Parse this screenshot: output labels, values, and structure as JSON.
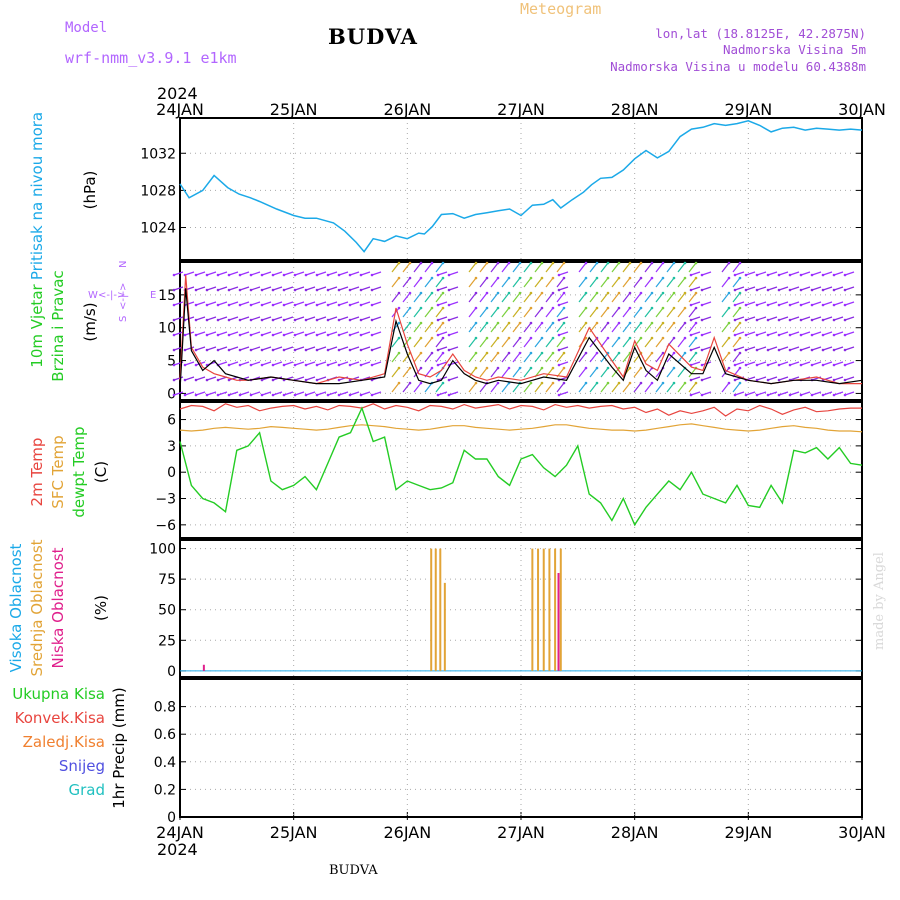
{
  "header": {
    "title": "BUDVA",
    "model_label": "Model",
    "model_value": "wrf-nmm_v3.9.1 e1km",
    "meteogram_label": "Meteogram",
    "lonlat": "lon,lat (18.8125E, 42.2875N)",
    "elevation": "Nadmorska Visina 5m",
    "model_elevation": "Nadmorska Visina u modelu 60.4388m"
  },
  "footer": {
    "station": "BUDVA",
    "credit": "made by Angel"
  },
  "time_axis": {
    "year": "2024",
    "labels": [
      "24JAN",
      "25JAN",
      "26JAN",
      "27JAN",
      "28JAN",
      "29JAN",
      "30JAN"
    ]
  },
  "colors": {
    "pressure": "#1ba9e8",
    "temp_2m": "#e8453f",
    "sfc_temp": "#e2a437",
    "dewpoint": "#24cc24",
    "cloud_high": "#1ba9e8",
    "cloud_mid": "#e2a437",
    "cloud_low": "#e0208c",
    "precip_total": "#24cc24",
    "precip_conv": "#e8453f",
    "precip_freezing": "#f08030",
    "snow": "#5050e0",
    "hail": "#20c0c0",
    "wind_dir_axis": "#b266ff"
  },
  "chart_data": [
    {
      "type": "line",
      "panel": "pressure",
      "ylabel_parts": [
        "Pritisak na nivou mora",
        "(hPa)"
      ],
      "ylim": [
        1020.5,
        1035.8
      ],
      "yticks": [
        1024,
        1028,
        1032
      ],
      "x_days": [
        0,
        0.08,
        0.2,
        0.3,
        0.42,
        0.52,
        0.62,
        0.7,
        0.85,
        1.0,
        1.1,
        1.2,
        1.35,
        1.45,
        1.55,
        1.62,
        1.7,
        1.8,
        1.9,
        2.0,
        2.1,
        2.15,
        2.22,
        2.3,
        2.4,
        2.5,
        2.6,
        2.7,
        2.8,
        2.9,
        3.0,
        3.1,
        3.2,
        3.28,
        3.35,
        3.45,
        3.55,
        3.62,
        3.7,
        3.8,
        3.9,
        4.0,
        4.1,
        4.2,
        4.3,
        4.4,
        4.5,
        4.6,
        4.7,
        4.8,
        4.9,
        5.0,
        5.1,
        5.2,
        5.3,
        5.4,
        5.5,
        5.6,
        5.7,
        5.8,
        5.9,
        6.0
      ],
      "series": [
        {
          "values": [
            1028.7,
            1027.2,
            1028.0,
            1029.6,
            1028.3,
            1027.6,
            1027.2,
            1026.8,
            1026.0,
            1025.3,
            1025.0,
            1025.0,
            1024.5,
            1023.6,
            1022.4,
            1021.4,
            1022.8,
            1022.5,
            1023.1,
            1022.8,
            1023.4,
            1023.3,
            1024.1,
            1025.4,
            1025.5,
            1025.0,
            1025.4,
            1025.6,
            1025.8,
            1026.0,
            1025.3,
            1026.4,
            1026.5,
            1027.0,
            1026.1,
            1027.0,
            1027.8,
            1028.6,
            1029.3,
            1029.4,
            1030.2,
            1031.4,
            1032.3,
            1031.5,
            1032.2,
            1033.8,
            1034.6,
            1034.8,
            1035.2,
            1035.0,
            1035.2,
            1035.5,
            1035.0,
            1034.3,
            1034.7,
            1034.8,
            1034.5,
            1034.7,
            1034.6,
            1034.5,
            1034.6,
            1034.5
          ]
        }
      ]
    },
    {
      "type": "line",
      "panel": "wind",
      "ylabel_parts": [
        "10m Vjetar",
        "Brzina i Pravac",
        "(m/s)"
      ],
      "direction_legend": {
        "n": "N",
        "s": "S",
        "w": "W",
        "e": "E",
        "arrow": "<-|->"
      },
      "ylim": [
        -1,
        20
      ],
      "yticks": [
        0,
        5,
        10,
        15
      ],
      "x_days": [
        0,
        0.05,
        0.1,
        0.2,
        0.3,
        0.4,
        0.5,
        0.6,
        0.8,
        1.0,
        1.2,
        1.4,
        1.6,
        1.8,
        1.9,
        2.0,
        2.1,
        2.2,
        2.3,
        2.4,
        2.5,
        2.6,
        2.7,
        2.8,
        3.0,
        3.2,
        3.4,
        3.6,
        3.8,
        3.9,
        4.0,
        4.1,
        4.2,
        4.3,
        4.5,
        4.6,
        4.7,
        4.8,
        5.0,
        5.2,
        5.4,
        5.6,
        5.8,
        6.0
      ],
      "series": [
        {
          "name": "speed",
          "values": [
            0.5,
            16.0,
            6.5,
            3.5,
            5.0,
            3.0,
            2.5,
            2.0,
            2.5,
            2.0,
            1.5,
            1.5,
            2.0,
            2.5,
            11.0,
            6.0,
            2.0,
            1.5,
            2.0,
            5.0,
            3.0,
            2.0,
            1.5,
            2.0,
            1.5,
            2.5,
            2.0,
            8.5,
            4.0,
            2.0,
            7.0,
            3.5,
            2.0,
            6.0,
            3.0,
            3.0,
            7.0,
            3.0,
            2.0,
            1.5,
            2.0,
            2.0,
            1.5,
            2.0
          ]
        },
        {
          "name": "gust",
          "values": [
            2.0,
            18.0,
            7.0,
            4.0,
            3.0,
            2.5,
            2.0,
            2.0,
            2.5,
            2.0,
            1.5,
            2.5,
            2.0,
            3.0,
            13.0,
            7.5,
            3.0,
            2.5,
            3.5,
            6.0,
            3.5,
            2.5,
            2.0,
            2.5,
            2.0,
            3.0,
            2.5,
            10.0,
            5.0,
            2.5,
            8.0,
            4.5,
            3.5,
            7.5,
            4.0,
            3.5,
            8.5,
            3.5,
            2.0,
            1.5,
            2.0,
            2.5,
            1.5,
            1.5
          ]
        }
      ]
    },
    {
      "type": "line",
      "panel": "temperature",
      "ylabel_parts": [
        "2m Temp",
        "SFC Temp",
        "dewpt Temp",
        "(C)"
      ],
      "ylim": [
        -7.5,
        8.0
      ],
      "yticks": [
        -6,
        -3,
        0,
        3,
        6
      ],
      "x_days": [
        0,
        0.1,
        0.2,
        0.3,
        0.4,
        0.5,
        0.6,
        0.7,
        0.8,
        0.9,
        1.0,
        1.1,
        1.2,
        1.3,
        1.4,
        1.5,
        1.6,
        1.7,
        1.8,
        1.9,
        2.0,
        2.1,
        2.2,
        2.3,
        2.4,
        2.5,
        2.6,
        2.7,
        2.8,
        2.9,
        3.0,
        3.1,
        3.2,
        3.3,
        3.4,
        3.5,
        3.6,
        3.7,
        3.8,
        3.9,
        4.0,
        4.1,
        4.2,
        4.3,
        4.4,
        4.5,
        4.6,
        4.7,
        4.8,
        4.9,
        5.0,
        5.1,
        5.2,
        5.3,
        5.4,
        5.5,
        5.6,
        5.7,
        5.8,
        5.9,
        6.0
      ],
      "series": [
        {
          "name": "2m Temp",
          "values": [
            7.2,
            7.6,
            7.5,
            7.0,
            7.8,
            7.4,
            7.6,
            7.0,
            7.3,
            7.5,
            7.6,
            7.2,
            7.5,
            7.1,
            7.6,
            7.5,
            7.3,
            7.8,
            7.2,
            7.6,
            7.4,
            7.0,
            7.6,
            7.5,
            7.2,
            7.7,
            7.3,
            7.5,
            7.7,
            7.2,
            7.6,
            7.5,
            7.1,
            7.7,
            7.4,
            7.6,
            7.3,
            7.5,
            7.6,
            7.2,
            7.4,
            6.8,
            7.2,
            6.5,
            7.0,
            6.7,
            7.0,
            7.4,
            6.4,
            7.2,
            7.0,
            7.6,
            7.2,
            6.6,
            7.1,
            7.4,
            6.9,
            7.0,
            7.2,
            7.3,
            7.3
          ]
        },
        {
          "name": "SFC Temp",
          "values": [
            4.8,
            4.7,
            4.8,
            5.0,
            5.1,
            5.0,
            4.9,
            5.0,
            5.2,
            5.1,
            5.0,
            4.9,
            4.8,
            4.9,
            5.1,
            5.3,
            5.4,
            5.3,
            5.2,
            5.0,
            4.9,
            4.8,
            4.9,
            5.1,
            5.3,
            5.3,
            5.1,
            5.0,
            4.9,
            4.8,
            4.9,
            5.0,
            5.2,
            5.4,
            5.4,
            5.2,
            5.0,
            4.9,
            4.8,
            4.8,
            4.7,
            4.8,
            5.0,
            5.2,
            5.4,
            5.5,
            5.3,
            5.1,
            4.9,
            4.8,
            4.7,
            4.8,
            5.0,
            5.2,
            5.3,
            5.1,
            5.0,
            4.8,
            4.7,
            4.7,
            4.6
          ]
        },
        {
          "name": "dewpt Temp",
          "values": [
            3.5,
            -1.5,
            -3.0,
            -3.5,
            -4.5,
            2.5,
            3.0,
            4.5,
            -1.0,
            -2.0,
            -1.5,
            -0.5,
            -2.0,
            1.0,
            4.0,
            4.5,
            7.3,
            3.5,
            4.0,
            -2.0,
            -1.0,
            -1.5,
            -2.0,
            -1.8,
            -1.2,
            2.5,
            1.5,
            1.5,
            -0.5,
            -1.5,
            1.5,
            2.0,
            0.5,
            -0.5,
            0.8,
            3.0,
            -2.5,
            -3.5,
            -5.5,
            -3.0,
            -6.0,
            -4.0,
            -2.5,
            -1.0,
            -2.0,
            0.0,
            -2.5,
            -3.0,
            -3.5,
            -1.5,
            -3.8,
            -4.0,
            -1.5,
            -3.5,
            2.5,
            2.2,
            2.8,
            1.5,
            2.8,
            1.0,
            0.8
          ]
        }
      ]
    },
    {
      "type": "bar",
      "panel": "cloud",
      "ylabel_parts": [
        "Visoka Oblacnost",
        "Srednja Oblacnost",
        "Niska Oblacnost",
        "(%)"
      ],
      "ylim": [
        -5,
        107
      ],
      "yticks": [
        0,
        25,
        50,
        75,
        100
      ],
      "series": [
        {
          "name": "Srednja Oblacnost",
          "x_days": [
            2.21,
            2.25,
            2.29,
            2.33,
            3.1,
            3.15,
            3.2,
            3.25,
            3.3,
            3.35
          ],
          "values": [
            100,
            100,
            100,
            72,
            100,
            100,
            100,
            100,
            100,
            100
          ]
        },
        {
          "name": "Niska Oblacnost",
          "x_days": [
            0.21,
            3.33
          ],
          "values": [
            5,
            80
          ]
        }
      ]
    },
    {
      "type": "bar",
      "panel": "precip",
      "ylabel": "1hr Precip (mm)",
      "legend": [
        "Ukupna Kisa",
        "Konvek.Kisa",
        "Zaledj.Kisa",
        "Snijeg",
        "Grad"
      ],
      "ylim": [
        0,
        1.0
      ],
      "yticks": [
        0,
        0.2,
        0.4,
        0.6,
        0.8
      ],
      "series": [
        {
          "name": "Ukupna Kisa",
          "values": []
        }
      ]
    }
  ]
}
